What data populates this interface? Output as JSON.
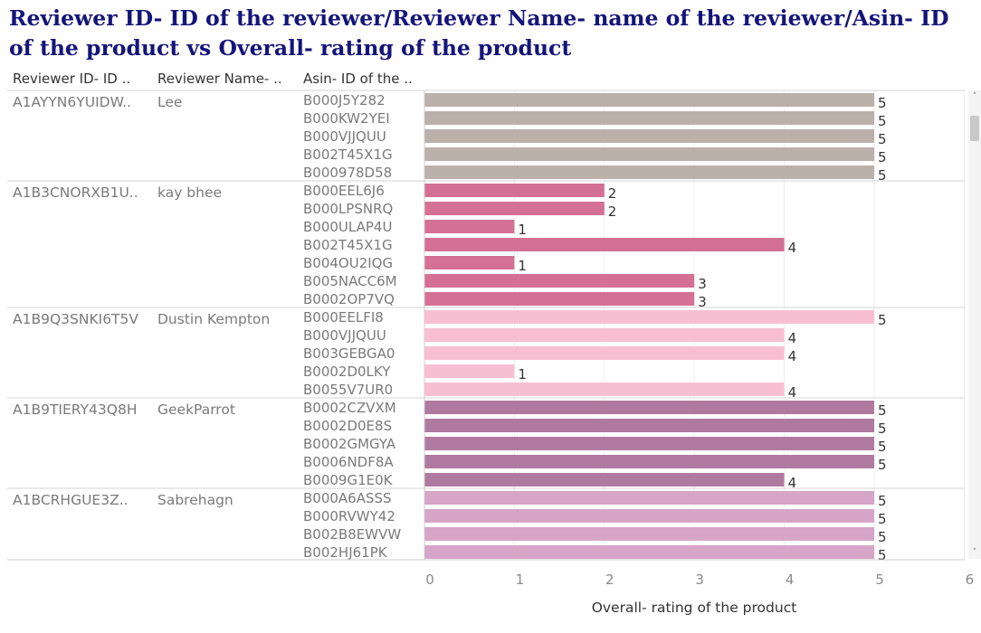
{
  "title": "Reviewer ID- ID of the reviewer/Reviewer Name- name of the reviewer/Asin- ID of the product vs Overall- rating of the product",
  "headers": {
    "reviewer_id": "Reviewer ID- ID ..",
    "reviewer_name": "Reviewer Name- ..",
    "asin": "Asin- ID of the .."
  },
  "chart_data": {
    "type": "bar",
    "orientation": "horizontal",
    "title": "Reviewer ID- ID of the reviewer/Reviewer Name- name of the reviewer/Asin- ID of the product vs Overall- rating of the product",
    "xlabel": "Overall- rating of the product",
    "xlim": [
      0,
      6
    ],
    "xticks": [
      0,
      1,
      2,
      3,
      4,
      5,
      6
    ],
    "grid": true,
    "groups": [
      {
        "reviewer_id": "A1AYYN6YUIDW..",
        "reviewer_name": "Lee",
        "color": "#bcb0ab",
        "items": [
          {
            "asin": "B000J5Y282",
            "value": 5
          },
          {
            "asin": "B000KW2YEI",
            "value": 5
          },
          {
            "asin": "B000VJJQUU",
            "value": 5
          },
          {
            "asin": "B002T45X1G",
            "value": 5
          },
          {
            "asin": "B000978D58",
            "value": 5
          }
        ]
      },
      {
        "reviewer_id": "A1B3CNORXB1U..",
        "reviewer_name": "kay bhee",
        "color": "#d47094",
        "items": [
          {
            "asin": "B000EEL6J6",
            "value": 2
          },
          {
            "asin": "B000LPSNRQ",
            "value": 2
          },
          {
            "asin": "B000ULAP4U",
            "value": 1
          },
          {
            "asin": "B002T45X1G",
            "value": 4
          },
          {
            "asin": "B004OU2IQG",
            "value": 1
          },
          {
            "asin": "B005NACC6M",
            "value": 3
          },
          {
            "asin": "B0002OP7VQ",
            "value": 3
          }
        ]
      },
      {
        "reviewer_id": "A1B9Q3SNKI6T5V",
        "reviewer_name": "Dustin Kempton",
        "color": "#f8bfd2",
        "items": [
          {
            "asin": "B000EELFI8",
            "value": 5
          },
          {
            "asin": "B000VJJQUU",
            "value": 4
          },
          {
            "asin": "B003GEBGA0",
            "value": 4
          },
          {
            "asin": "B0002D0LKY",
            "value": 1
          },
          {
            "asin": "B0055V7UR0",
            "value": 4
          }
        ]
      },
      {
        "reviewer_id": "A1B9TIERY43Q8H",
        "reviewer_name": "GeekParrot",
        "color": "#b07aa0",
        "items": [
          {
            "asin": "B0002CZVXM",
            "value": 5
          },
          {
            "asin": "B0002D0E8S",
            "value": 5
          },
          {
            "asin": "B0002GMGYA",
            "value": 5
          },
          {
            "asin": "B0006NDF8A",
            "value": 5
          },
          {
            "asin": "B0009G1E0K",
            "value": 4
          }
        ]
      },
      {
        "reviewer_id": "A1BCRHGUE3Z..",
        "reviewer_name": "Sabrehagn",
        "color": "#d6a5c8",
        "items": [
          {
            "asin": "B000A6ASSS",
            "value": 5
          },
          {
            "asin": "B000RVWY42",
            "value": 5
          },
          {
            "asin": "B002B8EWVW",
            "value": 5
          },
          {
            "asin": "B002HJ61PK",
            "value": 5
          }
        ]
      }
    ]
  }
}
